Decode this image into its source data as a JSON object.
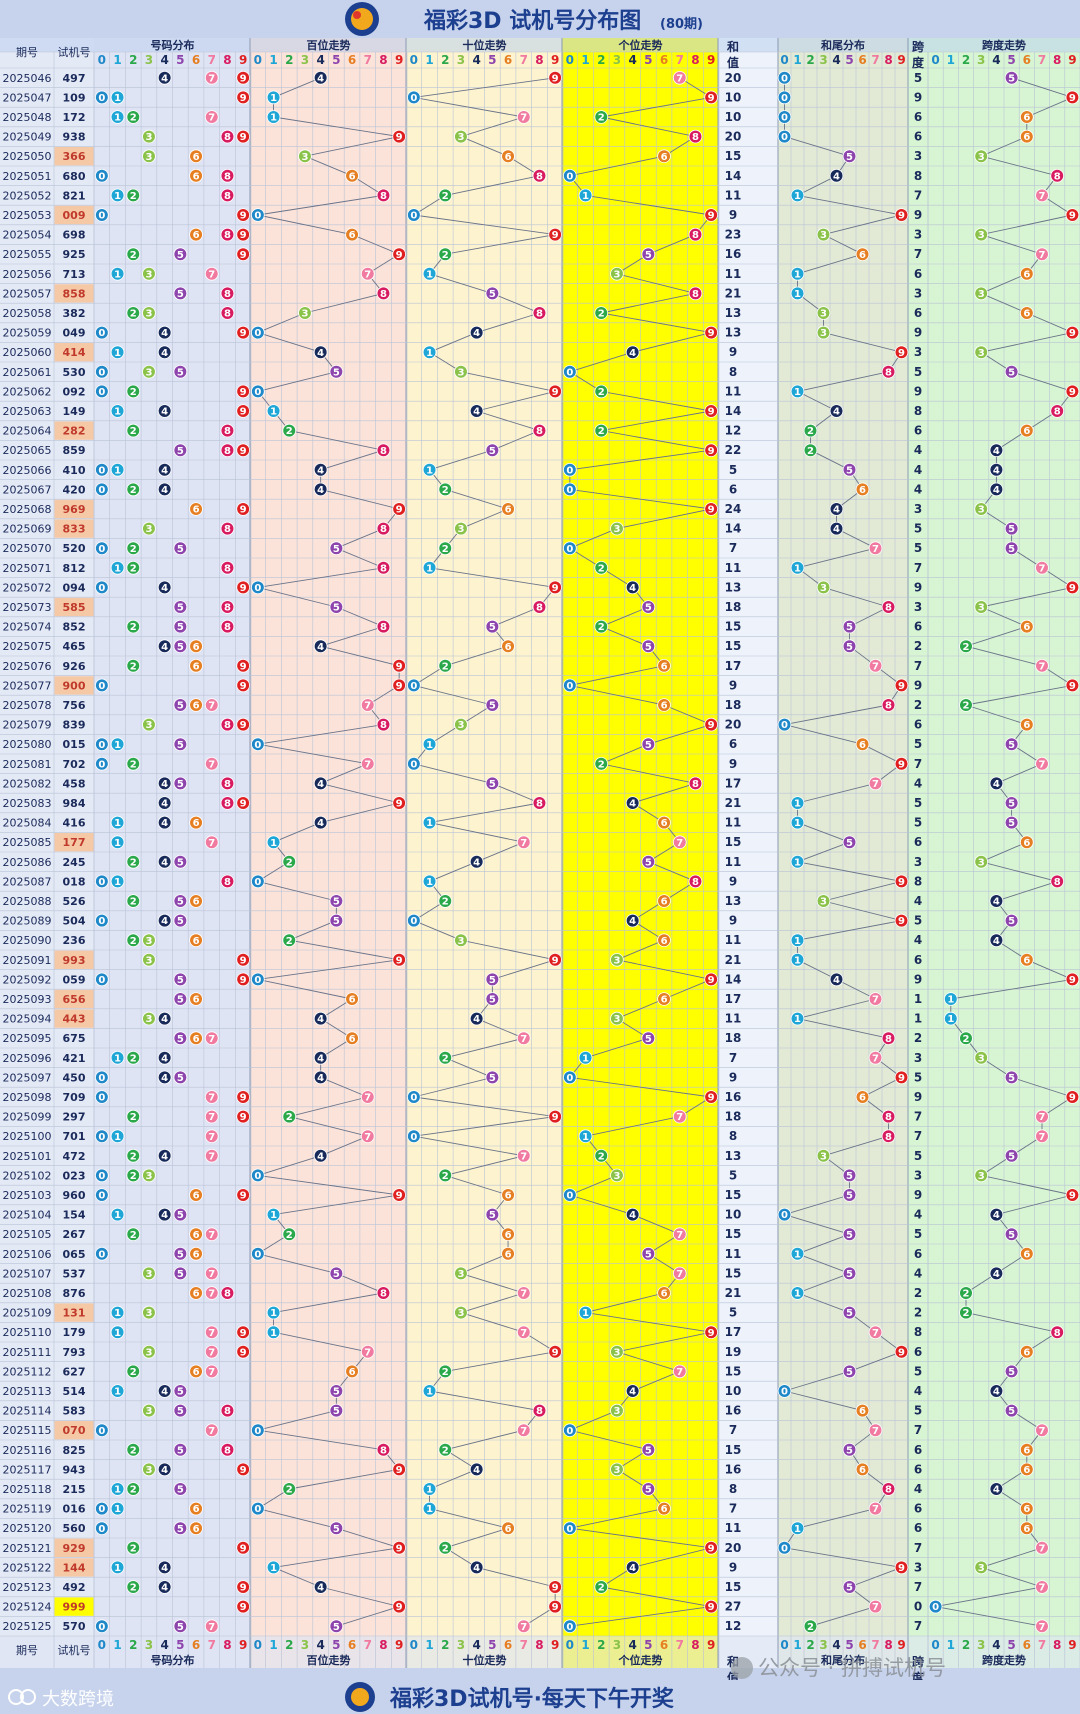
{
  "title": "福彩3D 试机号分布图",
  "subtitle": "(80期)",
  "footer_title": "福彩3D试机号·每天下午开奖",
  "brand": "大数跨境",
  "watermark": "公众号 · 拼搏试机号",
  "headers": {
    "period": "期号",
    "trial": "试机号",
    "distribution": "号码分布",
    "hundreds": "百位走势",
    "tens": "十位走势",
    "units": "个位走势",
    "sum_line1": "和",
    "sum_line2": "值",
    "sum_tail": "和尾分布",
    "span_line1": "跨",
    "span_line2": "度",
    "span_trend": "跨度走势"
  },
  "colors": {
    "digits": [
      "#1e88c8",
      "#1ea6d6",
      "#2aa84a",
      "#8bc34a",
      "#172a5a",
      "#8e44ad",
      "#e67e22",
      "#f07aa0",
      "#d81b60",
      "#e02020"
    ],
    "panel_distribution": "#dfe4f4",
    "panel_hundreds": "#fbe3da",
    "panel_tens": "#fdf3cf",
    "panel_units": "#ffff00",
    "panel_sum_tail": "#e2ead6",
    "panel_span": "#d7f5d3",
    "header_bg": "#bcd0ee",
    "highlight_group": "#f6c9a6",
    "highlight_triple": "#ffff00"
  },
  "chart_data": {
    "type": "table",
    "columns": [
      "期号",
      "试机号",
      "号码分布",
      "百位走势",
      "十位走势",
      "个位走势",
      "和值",
      "和尾分布",
      "跨度",
      "跨度走势"
    ],
    "digit_labels": [
      "0",
      "1",
      "2",
      "3",
      "4",
      "5",
      "6",
      "7",
      "8",
      "9"
    ],
    "rows": [
      {
        "period": "2025046",
        "trial": "497",
        "sum": "20",
        "span": "5"
      },
      {
        "period": "2025047",
        "trial": "109",
        "sum": "10",
        "span": "9"
      },
      {
        "period": "2025048",
        "trial": "172",
        "sum": "10",
        "span": "6"
      },
      {
        "period": "2025049",
        "trial": "938",
        "sum": "20",
        "span": "6"
      },
      {
        "period": "2025050",
        "trial": "366",
        "sum": "15",
        "span": "3"
      },
      {
        "period": "2025051",
        "trial": "680",
        "sum": "14",
        "span": "8"
      },
      {
        "period": "2025052",
        "trial": "821",
        "sum": "11",
        "span": "7"
      },
      {
        "period": "2025053",
        "trial": "009",
        "sum": "9",
        "span": "9"
      },
      {
        "period": "2025054",
        "trial": "698",
        "sum": "23",
        "span": "3"
      },
      {
        "period": "2025055",
        "trial": "925",
        "sum": "16",
        "span": "7"
      },
      {
        "period": "2025056",
        "trial": "713",
        "sum": "11",
        "span": "6"
      },
      {
        "period": "2025057",
        "trial": "858",
        "sum": "21",
        "span": "3"
      },
      {
        "period": "2025058",
        "trial": "382",
        "sum": "13",
        "span": "6"
      },
      {
        "period": "2025059",
        "trial": "049",
        "sum": "13",
        "span": "9"
      },
      {
        "period": "2025060",
        "trial": "414",
        "sum": "9",
        "span": "3"
      },
      {
        "period": "2025061",
        "trial": "530",
        "sum": "8",
        "span": "5"
      },
      {
        "period": "2025062",
        "trial": "092",
        "sum": "11",
        "span": "9"
      },
      {
        "period": "2025063",
        "trial": "149",
        "sum": "14",
        "span": "8"
      },
      {
        "period": "2025064",
        "trial": "282",
        "sum": "12",
        "span": "6"
      },
      {
        "period": "2025065",
        "trial": "859",
        "sum": "22",
        "span": "4"
      },
      {
        "period": "2025066",
        "trial": "410",
        "sum": "5",
        "span": "4"
      },
      {
        "period": "2025067",
        "trial": "420",
        "sum": "6",
        "span": "4"
      },
      {
        "period": "2025068",
        "trial": "969",
        "sum": "24",
        "span": "3"
      },
      {
        "period": "2025069",
        "trial": "833",
        "sum": "14",
        "span": "5"
      },
      {
        "period": "2025070",
        "trial": "520",
        "sum": "7",
        "span": "5"
      },
      {
        "period": "2025071",
        "trial": "812",
        "sum": "11",
        "span": "7"
      },
      {
        "period": "2025072",
        "trial": "094",
        "sum": "13",
        "span": "9"
      },
      {
        "period": "2025073",
        "trial": "585",
        "sum": "18",
        "span": "3"
      },
      {
        "period": "2025074",
        "trial": "852",
        "sum": "15",
        "span": "6"
      },
      {
        "period": "2025075",
        "trial": "465",
        "sum": "15",
        "span": "2"
      },
      {
        "period": "2025076",
        "trial": "926",
        "sum": "17",
        "span": "7"
      },
      {
        "period": "2025077",
        "trial": "900",
        "sum": "9",
        "span": "9"
      },
      {
        "period": "2025078",
        "trial": "756",
        "sum": "18",
        "span": "2"
      },
      {
        "period": "2025079",
        "trial": "839",
        "sum": "20",
        "span": "6"
      },
      {
        "period": "2025080",
        "trial": "015",
        "sum": "6",
        "span": "5"
      },
      {
        "period": "2025081",
        "trial": "702",
        "sum": "9",
        "span": "7"
      },
      {
        "period": "2025082",
        "trial": "458",
        "sum": "17",
        "span": "4"
      },
      {
        "period": "2025083",
        "trial": "984",
        "sum": "21",
        "span": "5"
      },
      {
        "period": "2025084",
        "trial": "416",
        "sum": "11",
        "span": "5"
      },
      {
        "period": "2025085",
        "trial": "177",
        "sum": "15",
        "span": "6"
      },
      {
        "period": "2025086",
        "trial": "245",
        "sum": "11",
        "span": "3"
      },
      {
        "period": "2025087",
        "trial": "018",
        "sum": "9",
        "span": "8"
      },
      {
        "period": "2025088",
        "trial": "526",
        "sum": "13",
        "span": "4"
      },
      {
        "period": "2025089",
        "trial": "504",
        "sum": "9",
        "span": "5"
      },
      {
        "period": "2025090",
        "trial": "236",
        "sum": "11",
        "span": "4"
      },
      {
        "period": "2025091",
        "trial": "993",
        "sum": "21",
        "span": "6"
      },
      {
        "period": "2025092",
        "trial": "059",
        "sum": "14",
        "span": "9"
      },
      {
        "period": "2025093",
        "trial": "656",
        "sum": "17",
        "span": "1"
      },
      {
        "period": "2025094",
        "trial": "443",
        "sum": "11",
        "span": "1"
      },
      {
        "period": "2025095",
        "trial": "675",
        "sum": "18",
        "span": "2"
      },
      {
        "period": "2025096",
        "trial": "421",
        "sum": "7",
        "span": "3"
      },
      {
        "period": "2025097",
        "trial": "450",
        "sum": "9",
        "span": "5"
      },
      {
        "period": "2025098",
        "trial": "709",
        "sum": "16",
        "span": "9"
      },
      {
        "period": "2025099",
        "trial": "297",
        "sum": "18",
        "span": "7"
      },
      {
        "period": "2025100",
        "trial": "701",
        "sum": "8",
        "span": "7"
      },
      {
        "period": "2025101",
        "trial": "472",
        "sum": "13",
        "span": "5"
      },
      {
        "period": "2025102",
        "trial": "023",
        "sum": "5",
        "span": "3"
      },
      {
        "period": "2025103",
        "trial": "960",
        "sum": "15",
        "span": "9"
      },
      {
        "period": "2025104",
        "trial": "154",
        "sum": "10",
        "span": "4"
      },
      {
        "period": "2025105",
        "trial": "267",
        "sum": "15",
        "span": "5"
      },
      {
        "period": "2025106",
        "trial": "065",
        "sum": "11",
        "span": "6"
      },
      {
        "period": "2025107",
        "trial": "537",
        "sum": "15",
        "span": "4"
      },
      {
        "period": "2025108",
        "trial": "876",
        "sum": "21",
        "span": "2"
      },
      {
        "period": "2025109",
        "trial": "131",
        "sum": "5",
        "span": "2"
      },
      {
        "period": "2025110",
        "trial": "179",
        "sum": "17",
        "span": "8"
      },
      {
        "period": "2025111",
        "trial": "793",
        "sum": "19",
        "span": "6"
      },
      {
        "period": "2025112",
        "trial": "627",
        "sum": "15",
        "span": "5"
      },
      {
        "period": "2025113",
        "trial": "514",
        "sum": "10",
        "span": "4"
      },
      {
        "period": "2025114",
        "trial": "583",
        "sum": "16",
        "span": "5"
      },
      {
        "period": "2025115",
        "trial": "070",
        "sum": "7",
        "span": "7"
      },
      {
        "period": "2025116",
        "trial": "825",
        "sum": "15",
        "span": "6"
      },
      {
        "period": "2025117",
        "trial": "943",
        "sum": "16",
        "span": "6"
      },
      {
        "period": "2025118",
        "trial": "215",
        "sum": "8",
        "span": "4"
      },
      {
        "period": "2025119",
        "trial": "016",
        "sum": "7",
        "span": "6"
      },
      {
        "period": "2025120",
        "trial": "560",
        "sum": "11",
        "span": "6"
      },
      {
        "period": "2025121",
        "trial": "929",
        "sum": "20",
        "span": "7"
      },
      {
        "period": "2025122",
        "trial": "144",
        "sum": "9",
        "span": "3"
      },
      {
        "period": "2025123",
        "trial": "492",
        "sum": "15",
        "span": "7"
      },
      {
        "period": "2025124",
        "trial": "999",
        "sum": "27",
        "span": "0"
      },
      {
        "period": "2025125",
        "trial": "570",
        "sum": "12",
        "span": "7"
      }
    ]
  }
}
